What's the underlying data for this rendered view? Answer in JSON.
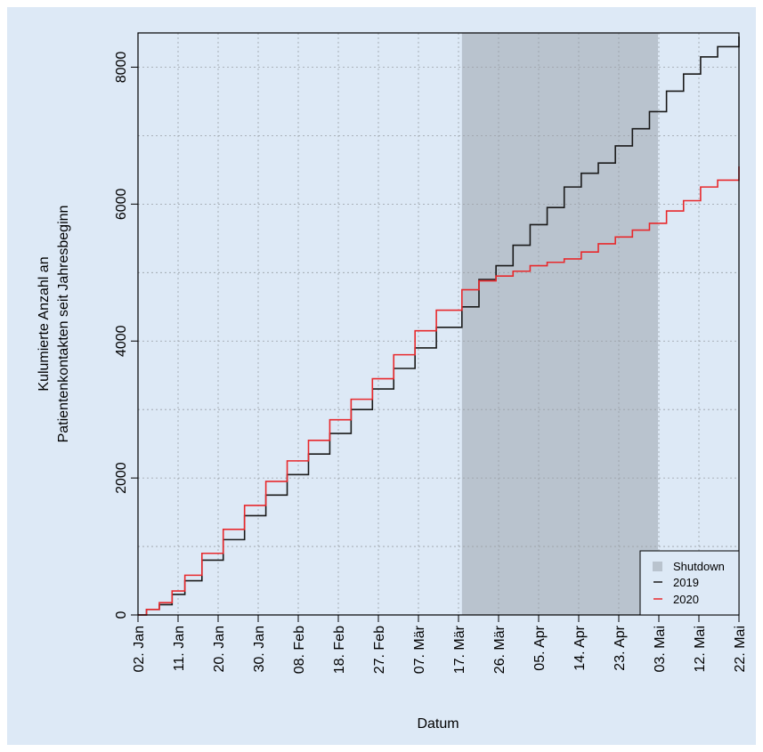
{
  "chart_data": {
    "type": "line",
    "xlabel": "Datum",
    "ylabel_lines": [
      "Kulumierte Anzahl an",
      "Patientenkontakten seit Jahresbeginn"
    ],
    "x_ticks": [
      "02. Jan",
      "11. Jan",
      "20. Jan",
      "30. Jan",
      "08. Feb",
      "18. Feb",
      "27. Feb",
      "07. Mär",
      "17. Mär",
      "26. Mär",
      "05. Apr",
      "14. Apr",
      "23. Apr",
      "03. Mai",
      "12. Mai",
      "22. Mai"
    ],
    "y_ticks": [
      0,
      2000,
      4000,
      6000,
      8000
    ],
    "xlim": [
      0,
      141
    ],
    "ylim": [
      0,
      8500
    ],
    "grid": true,
    "legend_position": "bottom-right",
    "shaded_region": {
      "name": "Shutdown",
      "x_start": 76,
      "x_end": 122,
      "color": "#b9c3ce"
    },
    "series": [
      {
        "name": "2019",
        "color": "#1a1a1a",
        "x": [
          0,
          2,
          5,
          8,
          11,
          15,
          20,
          25,
          30,
          35,
          40,
          45,
          50,
          55,
          60,
          65,
          70,
          76,
          80,
          84,
          88,
          92,
          96,
          100,
          104,
          108,
          112,
          116,
          120,
          124,
          128,
          132,
          136,
          141
        ],
        "y": [
          0,
          80,
          150,
          300,
          500,
          800,
          1100,
          1450,
          1750,
          2050,
          2350,
          2650,
          3000,
          3300,
          3600,
          3900,
          4200,
          4500,
          4900,
          5100,
          5400,
          5700,
          5950,
          6250,
          6450,
          6600,
          6850,
          7100,
          7350,
          7650,
          7900,
          8150,
          8300,
          8450
        ]
      },
      {
        "name": "2020",
        "color": "#e8292c",
        "x": [
          0,
          2,
          5,
          8,
          11,
          15,
          20,
          25,
          30,
          35,
          40,
          45,
          50,
          55,
          60,
          65,
          70,
          76,
          80,
          84,
          88,
          92,
          96,
          100,
          104,
          108,
          112,
          116,
          120,
          124,
          128,
          132,
          136,
          141
        ],
        "y": [
          0,
          80,
          180,
          350,
          580,
          900,
          1250,
          1600,
          1950,
          2250,
          2550,
          2850,
          3150,
          3450,
          3800,
          4150,
          4450,
          4750,
          4880,
          4950,
          5020,
          5100,
          5150,
          5200,
          5300,
          5420,
          5520,
          5620,
          5720,
          5900,
          6050,
          6250,
          6350,
          6550
        ]
      }
    ]
  }
}
